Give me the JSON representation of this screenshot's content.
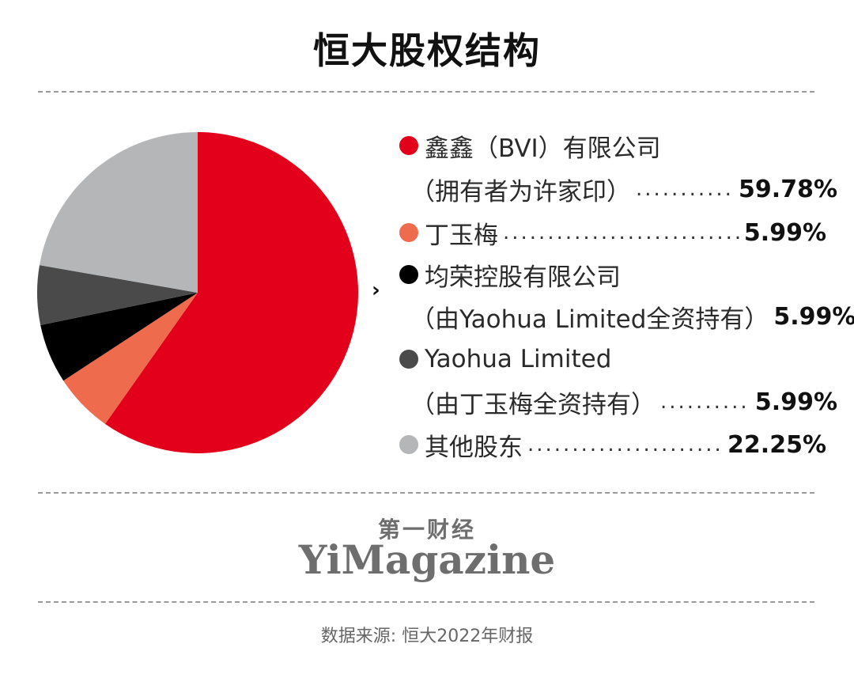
{
  "title": "恒大股权结构",
  "arrow": "›",
  "chart_data": {
    "type": "pie",
    "title": "恒大股权结构",
    "unit": "%",
    "slices": [
      {
        "label": "鑫鑫（BVI）有限公司",
        "sublabel": "（拥有者为许家印）",
        "value": 59.78,
        "display": "59.78%",
        "color": "#e2001a"
      },
      {
        "label": "丁玉梅",
        "sublabel": "",
        "value": 5.99,
        "display": "5.99%",
        "color": "#ee6b4d"
      },
      {
        "label": "均荣控股有限公司",
        "sublabel": "（由Yaohua Limited全资持有）",
        "value": 5.99,
        "display": "5.99%",
        "color": "#000000"
      },
      {
        "label": "Yaohua Limited",
        "sublabel": "（由丁玉梅全资持有）",
        "value": 5.99,
        "display": "5.99%",
        "color": "#4a4a4a"
      },
      {
        "label": "其他股东",
        "sublabel": "",
        "value": 22.25,
        "display": "22.25%",
        "color": "#b4b6b7"
      }
    ],
    "legend_position": "right"
  },
  "logo": {
    "cn": "第一财经",
    "en": "YiMagazine"
  },
  "source": "数据来源: 恒大2022年财报"
}
